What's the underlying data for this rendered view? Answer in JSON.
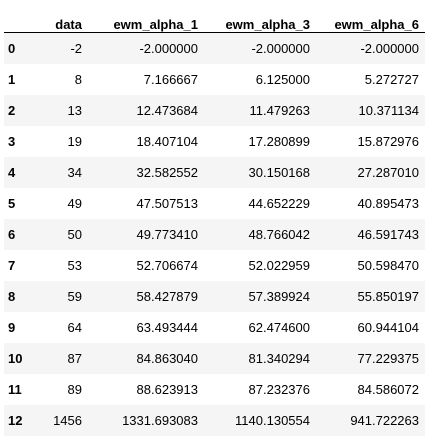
{
  "table": {
    "columns": [
      "",
      "data",
      "ewm_alpha_1",
      "ewm_alpha_3",
      "ewm_alpha_6"
    ],
    "rows": [
      [
        "0",
        "-2",
        "-2.000000",
        "-2.000000",
        "-2.000000"
      ],
      [
        "1",
        "8",
        "7.166667",
        "6.125000",
        "5.272727"
      ],
      [
        "2",
        "13",
        "12.473684",
        "11.479263",
        "10.371134"
      ],
      [
        "3",
        "19",
        "18.407104",
        "17.280899",
        "15.872976"
      ],
      [
        "4",
        "34",
        "32.582552",
        "30.150168",
        "27.287010"
      ],
      [
        "5",
        "49",
        "47.507513",
        "44.652229",
        "40.895473"
      ],
      [
        "6",
        "50",
        "49.773410",
        "48.766042",
        "46.591743"
      ],
      [
        "7",
        "53",
        "52.706674",
        "52.022959",
        "50.598470"
      ],
      [
        "8",
        "59",
        "58.427879",
        "57.389924",
        "55.850197"
      ],
      [
        "9",
        "64",
        "63.493444",
        "62.474600",
        "60.944104"
      ],
      [
        "10",
        "87",
        "84.863040",
        "81.340294",
        "77.229375"
      ],
      [
        "11",
        "89",
        "88.623913",
        "87.232376",
        "84.586072"
      ],
      [
        "12",
        "1456",
        "1331.693083",
        "1140.130554",
        "941.722263"
      ]
    ]
  }
}
